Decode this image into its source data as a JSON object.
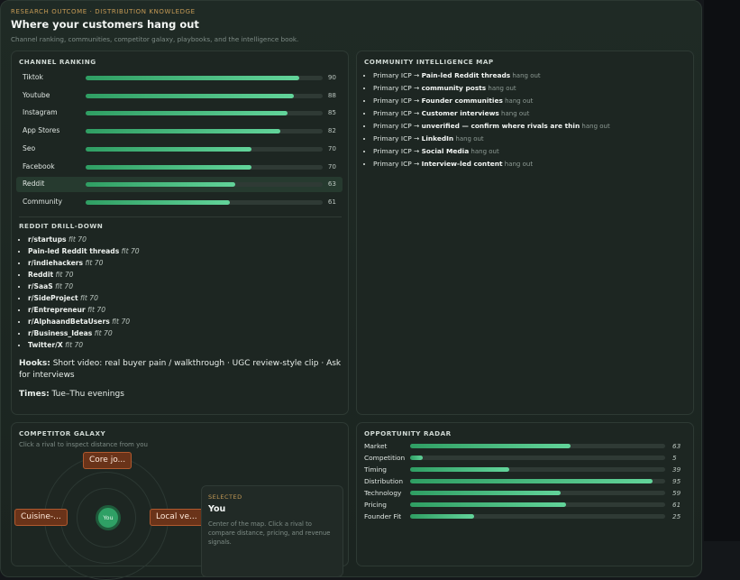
{
  "header": {
    "eyebrow": "RESEARCH OUTCOME · DISTRIBUTION KNOWLEDGE",
    "title": "Where your customers hang out",
    "subtitle": "Channel ranking, communities, competitor galaxy, playbooks, and the intelligence book."
  },
  "channel_ranking": {
    "title": "CHANNEL RANKING",
    "active": "Reddit",
    "rows": [
      {
        "label": "Tiktok",
        "value": 90
      },
      {
        "label": "Youtube",
        "value": 88
      },
      {
        "label": "Instagram",
        "value": 85
      },
      {
        "label": "App Stores",
        "value": 82
      },
      {
        "label": "Seo",
        "value": 70
      },
      {
        "label": "Facebook",
        "value": 70
      },
      {
        "label": "Reddit",
        "value": 63
      },
      {
        "label": "Community",
        "value": 61
      }
    ]
  },
  "drilldown": {
    "title": "REDDIT DRILL-DOWN",
    "items": [
      {
        "name": "r/startups",
        "fit": "fit 70"
      },
      {
        "name": "Pain-led Reddit threads",
        "fit": "fit 70"
      },
      {
        "name": "r/indiehackers",
        "fit": "fit 70"
      },
      {
        "name": "Reddit",
        "fit": "fit 70"
      },
      {
        "name": "r/SaaS",
        "fit": "fit 70"
      },
      {
        "name": "r/SideProject",
        "fit": "fit 70"
      },
      {
        "name": "r/Entrepreneur",
        "fit": "fit 70"
      },
      {
        "name": "r/AlphaandBetaUsers",
        "fit": "fit 70"
      },
      {
        "name": "r/Business_Ideas",
        "fit": "fit 70"
      },
      {
        "name": "Twitter/X",
        "fit": "fit 70"
      }
    ],
    "hooks_label": "Hooks:",
    "hooks_value": " Short video: real buyer pain / walkthrough · UGC review-style clip · Ask for interviews",
    "times_label": "Times:",
    "times_value": " Tue–Thu evenings"
  },
  "community_map": {
    "title": "COMMUNITY INTELLIGENCE MAP",
    "items": [
      {
        "prefix": "Primary ICP → ",
        "target": "Pain-led Reddit threads",
        "suffix": " hang out"
      },
      {
        "prefix": "Primary ICP → ",
        "target": "community posts",
        "suffix": " hang out"
      },
      {
        "prefix": "Primary ICP → ",
        "target": "Founder communities",
        "suffix": " hang out"
      },
      {
        "prefix": "Primary ICP → ",
        "target": "Customer interviews",
        "suffix": " hang out"
      },
      {
        "prefix": "Primary ICP → ",
        "target": "unverified — confirm where rivals are thin",
        "suffix": " hang out"
      },
      {
        "prefix": "Primary ICP → ",
        "target": "LinkedIn",
        "suffix": " hang out"
      },
      {
        "prefix": "Primary ICP → ",
        "target": "Social Media",
        "suffix": " hang out"
      },
      {
        "prefix": "Primary ICP → ",
        "target": "Interview-led content",
        "suffix": " hang out"
      }
    ]
  },
  "galaxy": {
    "title": "COMPETITOR GALAXY",
    "hint": "Click a rival to inspect distance from you",
    "you_label": "You",
    "rivals": [
      "Core jo...",
      "Cuisine-...",
      "Local ve..."
    ],
    "selected": {
      "eyebrow": "SELECTED",
      "name": "You",
      "description": "Center of the map. Click a rival to compare distance, pricing, and revenue signals."
    }
  },
  "radar": {
    "title": "OPPORTUNITY RADAR",
    "rows": [
      {
        "label": "Market",
        "value": 63
      },
      {
        "label": "Competition",
        "value": 5
      },
      {
        "label": "Timing",
        "value": 39
      },
      {
        "label": "Distribution",
        "value": 95
      },
      {
        "label": "Technology",
        "value": 59
      },
      {
        "label": "Pricing",
        "value": 61
      },
      {
        "label": "Founder Fit",
        "value": 25
      }
    ]
  },
  "colors": {
    "accent": "#3fbf7f",
    "eyebrow": "#c59a55",
    "rival": "#6a3319"
  }
}
